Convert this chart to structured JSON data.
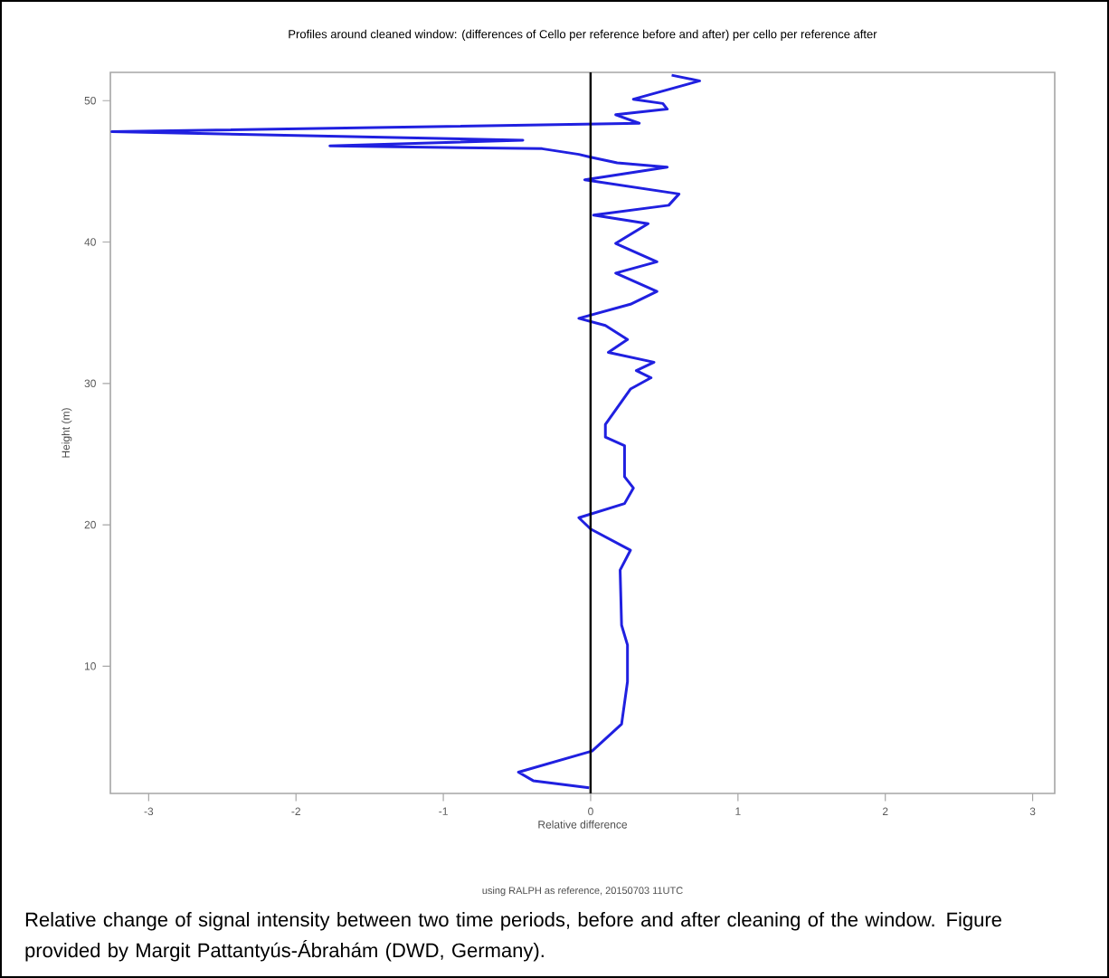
{
  "chart_data": {
    "type": "line",
    "title": "Profiles around cleaned window: (differences of Cello per reference before and after) per cello per reference after",
    "xlabel": "Relative difference",
    "ylabel": "Height (m)",
    "annotations": [
      "using RALPH as reference, 20150703 11UTC",
      "Relative change of signal intensity between two time periods, before and after cleaning of the window. Figure provided by Margit Pattantyús-Ábrahám (DWD, Germany)."
    ],
    "xlim": [
      -3.26,
      3.15
    ],
    "xticks": [
      -3,
      -2,
      -1,
      0,
      1,
      2,
      3
    ],
    "ylim": [
      1,
      52
    ],
    "yticks": [
      10,
      20,
      30,
      40,
      50
    ],
    "grid": false,
    "marker": "none",
    "line_style": "solid",
    "ref_lines": [
      {
        "axis": "x",
        "value": 0,
        "color": "#000000"
      }
    ],
    "series": [
      {
        "color": "#2020e0",
        "x": [
          0.55,
          0.74,
          0.29,
          0.49,
          0.52,
          0.17,
          0.33,
          -3.25,
          -0.46,
          -1.77,
          -0.33,
          -0.08,
          0.0,
          0.18,
          0.52,
          -0.04,
          0.6,
          0.53,
          0.02,
          0.39,
          0.17,
          0.45,
          0.17,
          0.45,
          0.27,
          -0.08,
          0.1,
          0.25,
          0.12,
          0.43,
          0.31,
          0.41,
          0.27,
          0.1,
          0.1,
          0.23,
          0.23,
          0.29,
          0.23,
          -0.08,
          0.0,
          0.27,
          0.2,
          0.21,
          0.25,
          0.25,
          0.21,
          0.01,
          -0.49,
          -0.39,
          -0.01
        ],
        "values": [
          51.8,
          51.4,
          50.1,
          49.8,
          49.4,
          49.0,
          48.4,
          47.8,
          47.2,
          46.8,
          46.6,
          46.2,
          46.0,
          45.6,
          45.3,
          44.4,
          43.4,
          42.6,
          41.9,
          41.3,
          39.9,
          38.6,
          37.8,
          36.5,
          35.6,
          34.6,
          34.1,
          33.1,
          32.2,
          31.5,
          30.9,
          30.4,
          29.6,
          27.1,
          26.2,
          25.6,
          23.4,
          22.6,
          21.5,
          20.5,
          19.7,
          18.2,
          16.8,
          12.9,
          11.5,
          8.9,
          5.9,
          4.0,
          2.5,
          1.9,
          1.4
        ]
      }
    ]
  }
}
